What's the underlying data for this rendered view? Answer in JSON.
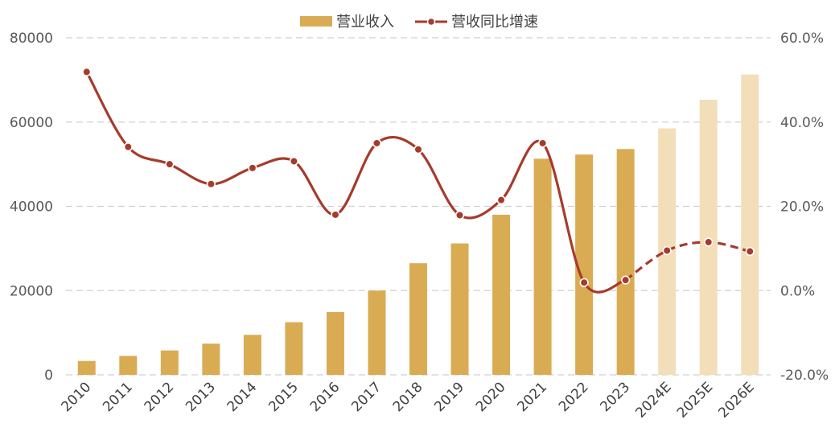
{
  "chart_data": {
    "type": "bar",
    "legend": {
      "position": "top-center"
    },
    "grid": true,
    "categories": [
      "2010",
      "2011",
      "2012",
      "2013",
      "2014",
      "2015",
      "2016",
      "2017",
      "2018",
      "2019",
      "2020",
      "2021",
      "2022",
      "2023",
      "2024E",
      "2025E",
      "2026E"
    ],
    "forecast_start_index": 14,
    "series": [
      {
        "name": "营业收入",
        "type": "bar",
        "axis": "left",
        "color": "#D9AC54",
        "forecast_color": "#F2DFB9",
        "values": [
          3300,
          4500,
          5800,
          7400,
          9500,
          12500,
          14900,
          20000,
          26500,
          31200,
          38000,
          51300,
          52300,
          53600,
          58500,
          65300,
          71300
        ]
      },
      {
        "name": "营收同比增速",
        "type": "line",
        "axis": "right",
        "unit": "%",
        "color": "#A63B2C",
        "values": [
          51.9,
          34.1,
          30.0,
          25.3,
          29.1,
          30.7,
          18.0,
          35.0,
          33.5,
          17.9,
          21.5,
          35.0,
          1.9,
          2.5,
          9.5,
          11.5,
          9.3
        ]
      }
    ],
    "y_left": {
      "ylim": [
        0,
        80000
      ],
      "ticks": [
        "0",
        "20000",
        "40000",
        "60000",
        "80000"
      ]
    },
    "y_right": {
      "ylim": [
        -20,
        60
      ],
      "ticks": [
        "-20.0%",
        "0.0%",
        "20.0%",
        "40.0%",
        "60.0%"
      ]
    }
  }
}
